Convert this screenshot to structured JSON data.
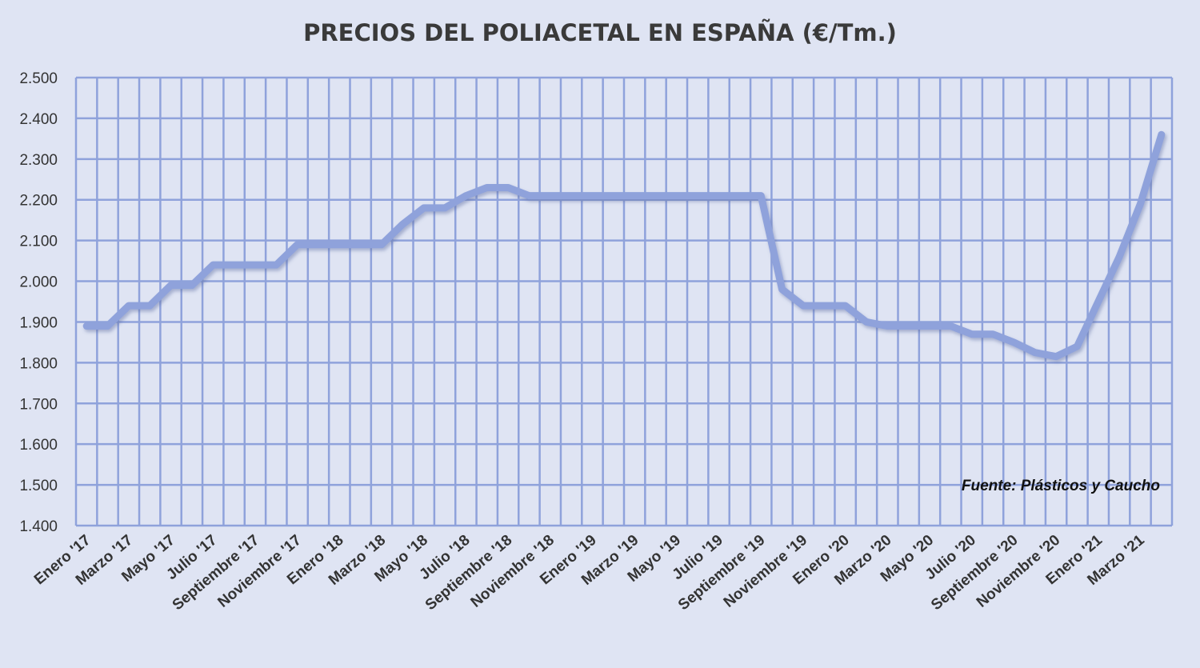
{
  "chart_data": {
    "type": "line",
    "title": "PRECIOS DEL POLIACETAL  EN ESPAÑA (€/Tm.)",
    "xlabel": "",
    "ylabel": "",
    "ylim": [
      1400,
      2500
    ],
    "yticks": [
      "1.400",
      "1.500",
      "1.600",
      "1.700",
      "1.800",
      "1.900",
      "2.000",
      "2.100",
      "2.200",
      "2.300",
      "2.400",
      "2.500"
    ],
    "x_tick_labels": [
      "Enero '17",
      "Marzo '17",
      "Mayo '17",
      "Julio '17",
      "Septiembre '17",
      "Noviembre '17",
      "Enero '18",
      "Marzo '18",
      "Mayo '18",
      "Julio '18",
      "Septiembre '18",
      "Noviembre '18",
      "Enero '19",
      "Marzo '19",
      "Mayo '19",
      "Julio '19",
      "Septiembre '19",
      "Noviembre '19",
      "Enero '20",
      "Marzo '20",
      "Mayo '20",
      "Julio '20",
      "Septiembre '20",
      "Noviembre '20",
      "Enero '21",
      "Marzo '21"
    ],
    "grid": true,
    "legend": "none",
    "annotation": "Fuente: Plásticos y Caucho",
    "series": [
      {
        "name": "Poliacetal",
        "color": "#8fa2db",
        "values": [
          1890,
          1890,
          1940,
          1940,
          1990,
          1990,
          2040,
          2040,
          2040,
          2040,
          2090,
          2090,
          2090,
          2090,
          2090,
          2140,
          2180,
          2180,
          2210,
          2230,
          2230,
          2210,
          2210,
          2210,
          2210,
          2210,
          2210,
          2210,
          2210,
          2210,
          2210,
          2210,
          2210,
          1980,
          1940,
          1940,
          1940,
          1900,
          1890,
          1890,
          1890,
          1890,
          1870,
          1870,
          1850,
          1825,
          1815,
          1840,
          1950,
          2060,
          2190,
          2360
        ]
      }
    ]
  }
}
